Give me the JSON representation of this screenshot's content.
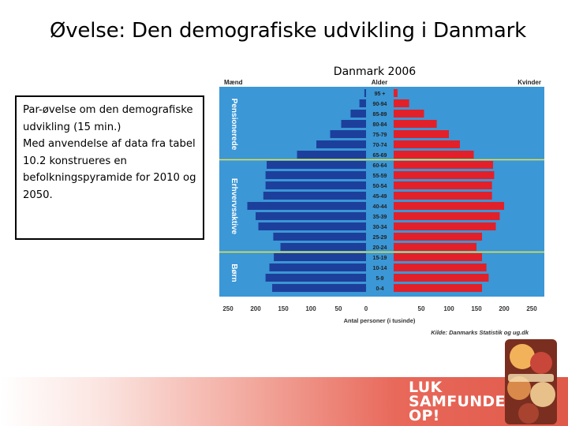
{
  "slide": {
    "title": "Øvelse: Den demografiske udvikling i Danmark",
    "chart_caption": "Danmark 2006"
  },
  "exercise": {
    "line1": "Par-øvelse om den demografiske udvikling (15 min.)",
    "line2": "Med anvendelse af data fra tabel 10.2 konstrueres en befolkningspyramide for 2010 og 2050."
  },
  "campaign": {
    "line1": "LUK",
    "line2": "SAMFUNDET",
    "line3": "OP!"
  },
  "colors": {
    "background_blue": "#3b97d6",
    "men_bar": "#1d3f9c",
    "women_bar": "#e2202a",
    "group_divider": "#e8e64a",
    "group_label": "#ffffff",
    "footer_red": "#e05a4a"
  },
  "chart_data": {
    "type": "bar",
    "title": "",
    "left_label": "Mænd",
    "center_label": "Alder",
    "right_label": "Kvinder",
    "xlabel": "Antal personer (i tusinde)",
    "source": "Kilde: Danmarks Statistik og ug.dk",
    "xlim": [
      0,
      250
    ],
    "x_ticks": [
      "250",
      "200",
      "150",
      "100",
      "50",
      "0",
      "50",
      "100",
      "150",
      "200",
      "250"
    ],
    "categories": [
      "95 +",
      "90-94",
      "85-89",
      "80-84",
      "75-79",
      "70-74",
      "65-69",
      "60-64",
      "55-59",
      "50-54",
      "45-49",
      "40-44",
      "35-39",
      "30-34",
      "25-29",
      "20-24",
      "15-19",
      "10-14",
      "5-9",
      "0-4"
    ],
    "series": [
      {
        "name": "Mænd",
        "values": [
          3,
          12,
          28,
          45,
          65,
          90,
          125,
          180,
          182,
          182,
          186,
          215,
          200,
          195,
          168,
          155,
          167,
          175,
          182,
          170
        ]
      },
      {
        "name": "Kvinder",
        "values": [
          7,
          28,
          55,
          78,
          100,
          120,
          145,
          180,
          182,
          178,
          178,
          200,
          192,
          185,
          160,
          150,
          160,
          168,
          172,
          160
        ]
      }
    ],
    "groups": [
      "Pensionerede",
      "Erhvervsaktive",
      "Børn"
    ],
    "group_bounds": [
      [
        "95 +",
        "65-69"
      ],
      [
        "60-64",
        "20-24"
      ],
      [
        "15-19",
        "0-4"
      ]
    ]
  }
}
